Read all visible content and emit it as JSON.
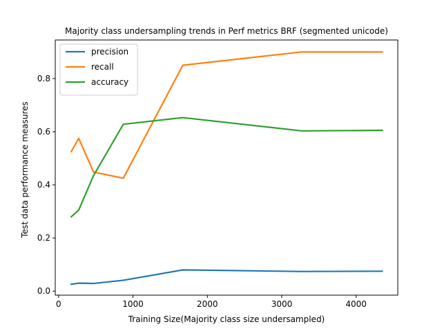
{
  "chart_data": {
    "type": "line",
    "title": "Majority class undersampling trends in Perf metrics BRF (segmented unicode)",
    "xlabel": "Training Size(Majority class size undersampled)",
    "ylabel": "Test data performance measures",
    "xlim": [
      -45,
      4560
    ],
    "ylim": [
      -0.015,
      0.945
    ],
    "xticks": [
      0,
      1000,
      2000,
      3000,
      4000
    ],
    "yticks": [
      0.0,
      0.2,
      0.4,
      0.6,
      0.8
    ],
    "ytick_labels": [
      "0.0",
      "0.2",
      "0.4",
      "0.6",
      "0.8"
    ],
    "grid": false,
    "legend_position": "upper-left",
    "x": [
      170,
      270,
      470,
      870,
      1670,
      3270,
      4350
    ],
    "series": [
      {
        "name": "precision",
        "color": "#1f77b4",
        "values": [
          0.026,
          0.03,
          0.029,
          0.041,
          0.08,
          0.074,
          0.075
        ]
      },
      {
        "name": "recall",
        "color": "#ff7f0e",
        "values": [
          0.525,
          0.575,
          0.448,
          0.425,
          0.85,
          0.9,
          0.9
        ]
      },
      {
        "name": "accuracy",
        "color": "#2ca02c",
        "values": [
          0.28,
          0.305,
          0.435,
          0.628,
          0.653,
          0.603,
          0.605
        ]
      }
    ]
  }
}
